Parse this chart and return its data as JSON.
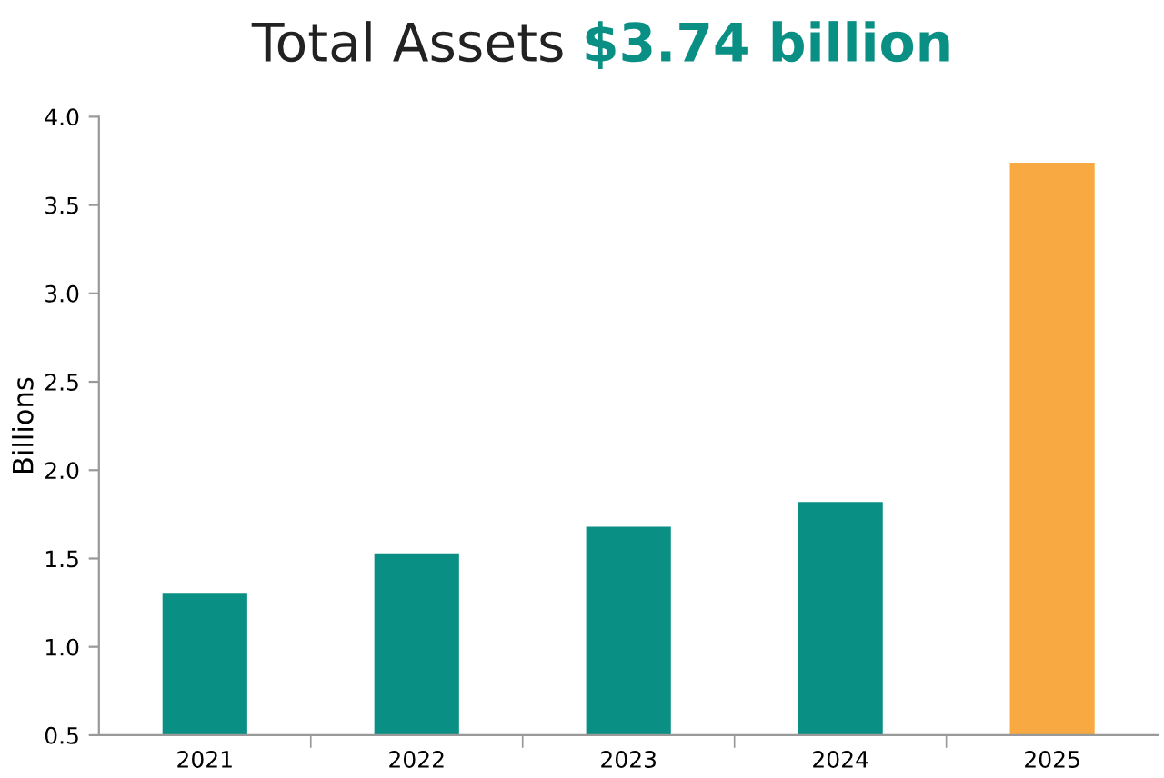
{
  "chart_data": {
    "type": "bar",
    "title": "Total Assets",
    "annotations": [
      "$3.74 billion"
    ],
    "ylabel": "Billions",
    "categories": [
      "2021",
      "2022",
      "2023",
      "2024",
      "2025"
    ],
    "values": [
      1.3,
      1.53,
      1.68,
      1.82,
      3.74
    ],
    "colors": [
      "#0a8f84",
      "#0a8f84",
      "#0a8f84",
      "#0a8f84",
      "#f9a942"
    ],
    "ylim": [
      0.5,
      4.0
    ],
    "yticks": [
      {
        "value": 0.5,
        "label": "0.5"
      },
      {
        "value": 1,
        "label": "1.0"
      },
      {
        "value": 1.5,
        "label": "1.5"
      },
      {
        "value": 2,
        "label": "2.0"
      },
      {
        "value": 2.5,
        "label": "2.5"
      },
      {
        "value": 3,
        "label": "3.0"
      },
      {
        "value": 3.5,
        "label": "3.5"
      },
      {
        "value": 4,
        "label": "4.0"
      }
    ],
    "grid": false,
    "legend": false
  }
}
